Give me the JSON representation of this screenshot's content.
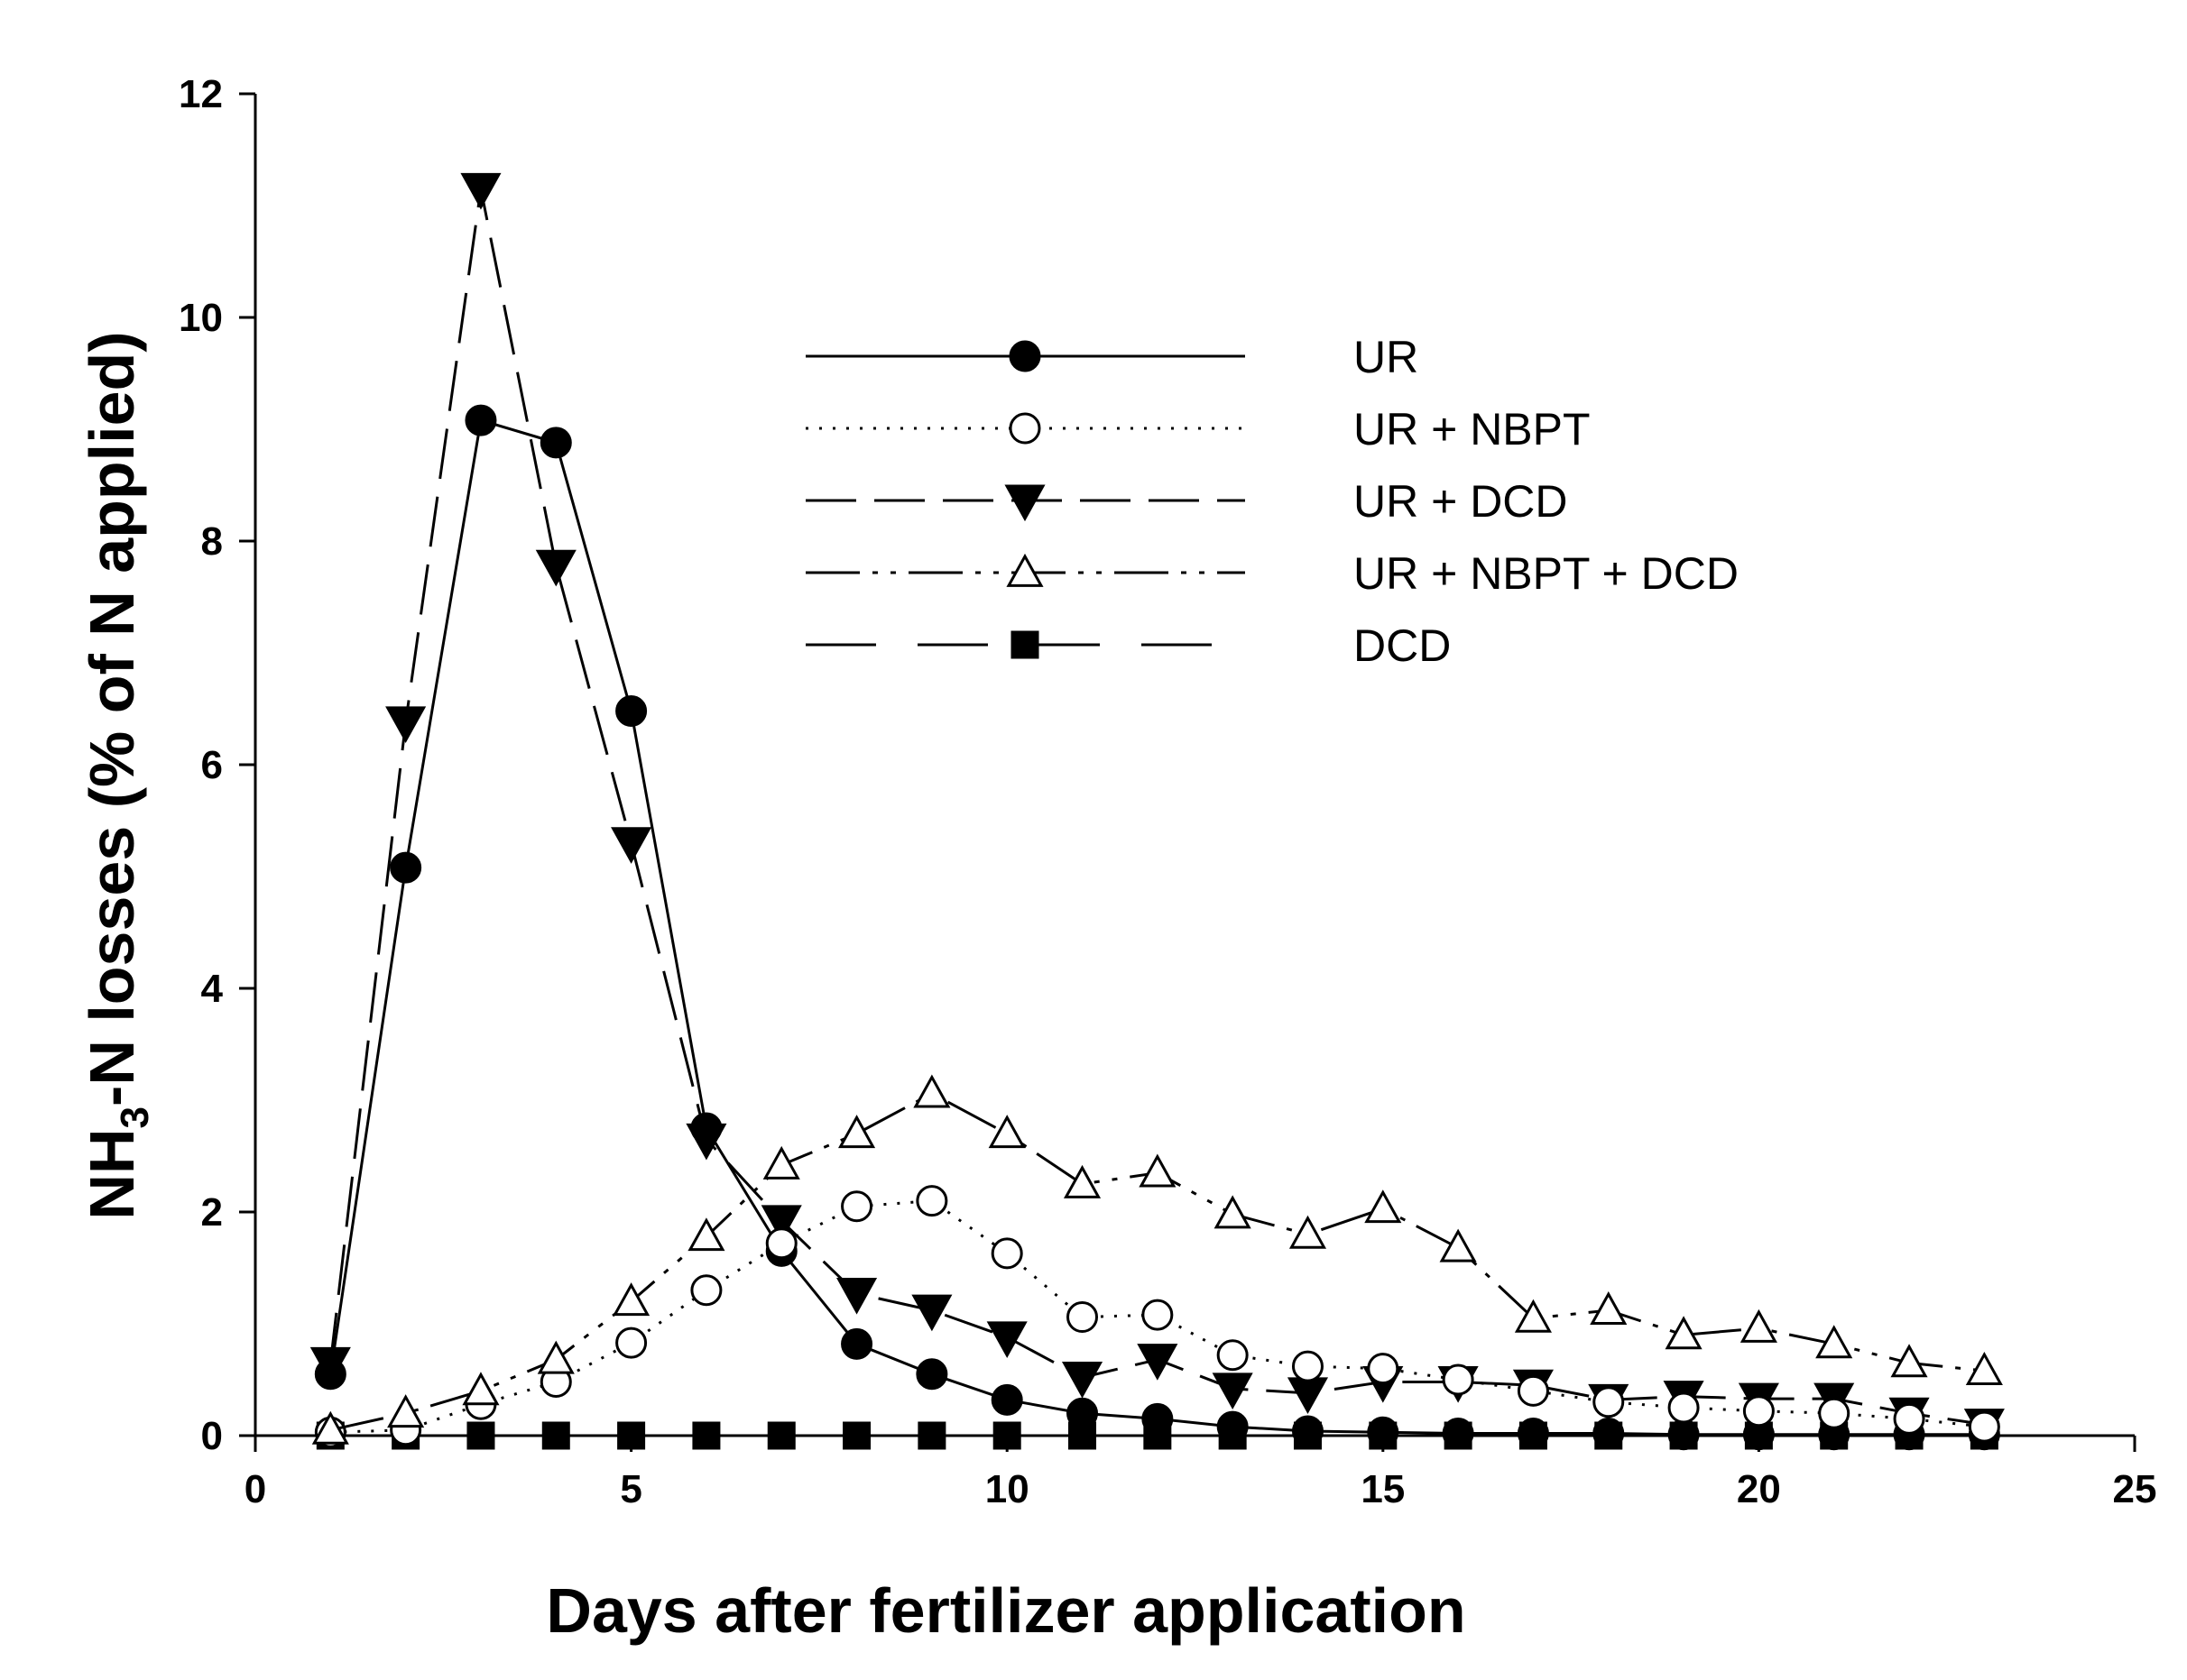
{
  "chart_data": {
    "type": "line",
    "title": "",
    "xlabel": "Days after fertilizer application",
    "ylabel_main": "NH",
    "ylabel_sub": "3",
    "ylabel_rest": "-N losses (% of N applied)",
    "xlim": [
      0,
      25
    ],
    "ylim": [
      0,
      12
    ],
    "xticks": [
      0,
      5,
      10,
      15,
      20,
      25
    ],
    "yticks": [
      0,
      2,
      4,
      6,
      8,
      10,
      12
    ],
    "grid": false,
    "legend_position": "upper-center",
    "x": [
      1,
      2,
      3,
      4,
      5,
      6,
      7,
      8,
      9,
      10,
      11,
      12,
      13,
      14,
      15,
      16,
      17,
      18,
      19,
      20,
      21,
      22,
      23
    ],
    "series": [
      {
        "name": "UR",
        "marker": "filled-circle",
        "line": "solid",
        "values": [
          0.55,
          5.08,
          9.08,
          8.88,
          6.48,
          2.75,
          1.65,
          0.82,
          0.55,
          0.32,
          0.2,
          0.15,
          0.08,
          0.04,
          0.03,
          0.02,
          0.02,
          0.02,
          0.01,
          0.01,
          0.01,
          0.01,
          0.01
        ]
      },
      {
        "name": "UR + NBPT",
        "marker": "open-circle",
        "line": "dotted",
        "values": [
          0.03,
          0.05,
          0.28,
          0.48,
          0.83,
          1.3,
          1.72,
          2.05,
          2.1,
          1.63,
          1.06,
          1.08,
          0.72,
          0.62,
          0.6,
          0.5,
          0.4,
          0.3,
          0.25,
          0.22,
          0.2,
          0.15,
          0.08
        ]
      },
      {
        "name": "UR + DCD",
        "marker": "filled-triangle-down",
        "line": "dashed",
        "values": [
          0.65,
          6.38,
          11.15,
          7.78,
          5.3,
          2.65,
          1.92,
          1.27,
          1.12,
          0.88,
          0.52,
          0.68,
          0.42,
          0.38,
          0.48,
          0.48,
          0.45,
          0.32,
          0.35,
          0.33,
          0.33,
          0.2,
          0.1
        ]
      },
      {
        "name": "UR + NBPT + DCD",
        "marker": "open-triangle-up",
        "line": "dash-dot-dot",
        "values": [
          0.05,
          0.2,
          0.4,
          0.68,
          1.2,
          1.78,
          2.42,
          2.7,
          3.06,
          2.7,
          2.25,
          2.35,
          1.98,
          1.8,
          2.03,
          1.68,
          1.05,
          1.12,
          0.9,
          0.96,
          0.82,
          0.65,
          0.58
        ]
      },
      {
        "name": "DCD",
        "marker": "filled-square",
        "line": "long-dash",
        "values": [
          0,
          0,
          0,
          0,
          0,
          0,
          0,
          0,
          0,
          0,
          0,
          0,
          0,
          0,
          0,
          0,
          0,
          0,
          0,
          0,
          0,
          0,
          0
        ]
      }
    ]
  }
}
